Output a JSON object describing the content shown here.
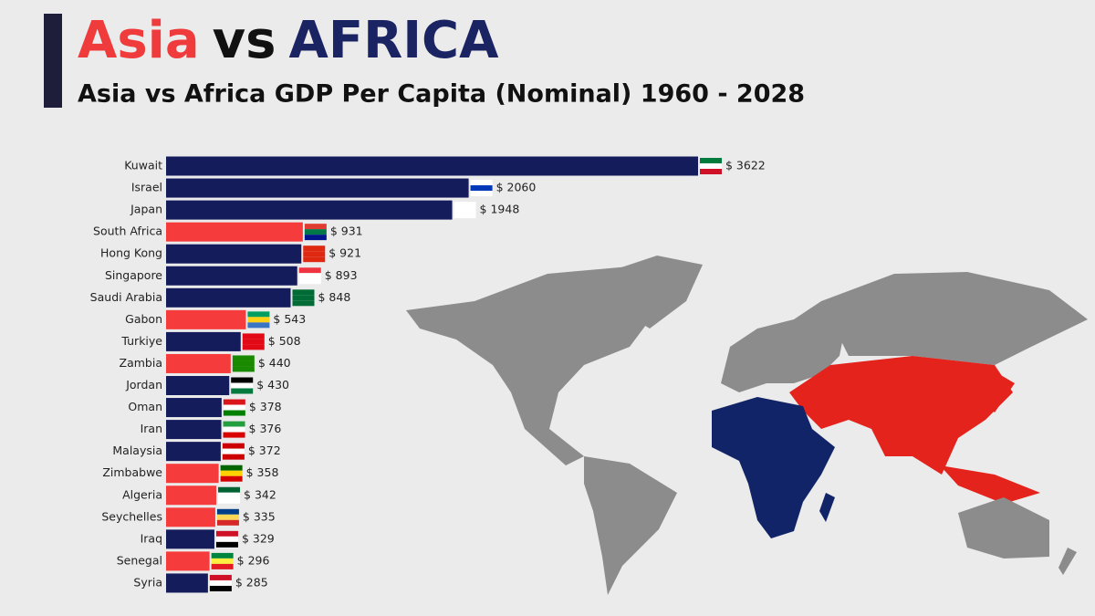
{
  "chart_data": {
    "type": "bar",
    "orientation": "horizontal",
    "title_parts": [
      {
        "text": "Asia",
        "color": "#ef3b3b"
      },
      {
        "text": "vs",
        "color": "#111111"
      },
      {
        "text": "AFRICA",
        "color": "#1b2463"
      }
    ],
    "subtitle": "Asia vs Africa GDP Per Capita (Nominal) 1960 - 2028",
    "categories": [
      "Kuwait",
      "Israel",
      "Japan",
      "South Africa",
      "Hong Kong",
      "Singapore",
      "Saudi Arabia",
      "Gabon",
      "Turkiye",
      "Zambia",
      "Jordan",
      "Oman",
      "Iran",
      "Malaysia",
      "Zimbabwe",
      "Algeria",
      "Seychelles",
      "Iraq",
      "Senegal",
      "Syria"
    ],
    "values": [
      3622,
      2060,
      1948,
      931,
      921,
      893,
      848,
      543,
      508,
      440,
      430,
      378,
      376,
      372,
      358,
      342,
      335,
      329,
      296,
      285
    ],
    "value_labels": [
      "$ 3622",
      "$ 2060",
      "$ 1948",
      "$ 931",
      "$ 921",
      "$ 893",
      "$ 848",
      "$ 543",
      "$ 508",
      "$ 440",
      "$ 430",
      "$ 378",
      "$ 376",
      "$ 372",
      "$ 358",
      "$ 342",
      "$ 335",
      "$ 329",
      "$ 296",
      "$ 285"
    ],
    "colors": [
      "#141c5c",
      "#141c5c",
      "#141c5c",
      "#f53b3b",
      "#141c5c",
      "#141c5c",
      "#141c5c",
      "#f53b3b",
      "#141c5c",
      "#f53b3b",
      "#141c5c",
      "#141c5c",
      "#141c5c",
      "#141c5c",
      "#f53b3b",
      "#f53b3b",
      "#f53b3b",
      "#141c5c",
      "#f53b3b",
      "#141c5c"
    ]
  }
}
